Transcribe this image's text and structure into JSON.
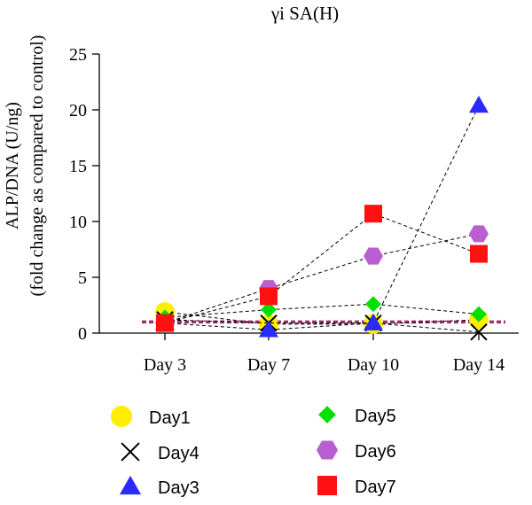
{
  "chart_data": {
    "type": "line",
    "title": "γi SA(H)",
    "ylabel_line1": "ALP/DNA (U/ng)",
    "ylabel_line2": "(fold change as compared to control)",
    "xlabel": "",
    "categories": [
      "Day 3",
      "Day 7",
      "Day 10",
      "Day 14"
    ],
    "ylim": [
      0,
      25
    ],
    "yticks": [
      "0",
      "5",
      "10",
      "15",
      "20",
      "25"
    ],
    "grid": false,
    "legend_placement": "bottom",
    "control_line": {
      "value": 1.0,
      "color": "#a0306a"
    },
    "series": [
      {
        "name": "Day1",
        "marker": "circle",
        "color": "#ffee00",
        "values": [
          1.9,
          0.8,
          0.8,
          1.2
        ]
      },
      {
        "name": "Day4",
        "marker": "x",
        "color": "#000000",
        "values": [
          1.2,
          0.9,
          0.9,
          0.1
        ]
      },
      {
        "name": "Day3",
        "marker": "triangle",
        "color": "#2a2aff",
        "values": [
          0.9,
          0.3,
          0.9,
          20.4
        ]
      },
      {
        "name": "Day5",
        "marker": "diamond",
        "color": "#00e000",
        "values": [
          1.4,
          2.1,
          2.6,
          1.7
        ]
      },
      {
        "name": "Day6",
        "marker": "hexagon",
        "color": "#b95fd2",
        "values": [
          0.9,
          4.0,
          6.9,
          8.9
        ]
      },
      {
        "name": "Day7",
        "marker": "square",
        "color": "#ff1111",
        "values": [
          0.9,
          3.3,
          10.7,
          7.1
        ]
      }
    ]
  }
}
